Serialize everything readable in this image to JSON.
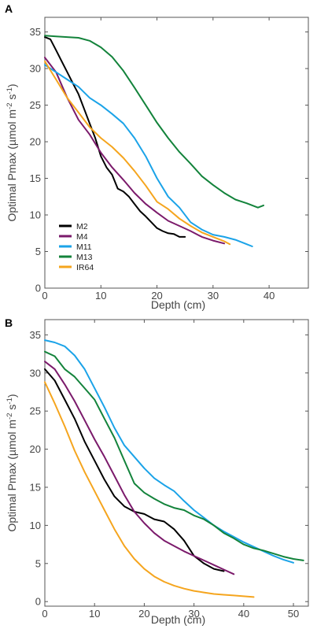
{
  "chart_data": [
    {
      "panel_label": "A",
      "type": "line",
      "xlabel": "Depth (cm)",
      "ylabel": "Optimal Pmax (µmol m⁻² s⁻¹)",
      "ylabel_parts": {
        "main": "Optimal Pmax (µmol m",
        "sup1": "-2",
        "mid": " s",
        "sup2": "-1",
        "end": ")"
      },
      "xlim": [
        0,
        47
      ],
      "ylim": [
        0,
        37
      ],
      "xticks": [
        "0",
        "10",
        "20",
        "30",
        "40"
      ],
      "yticks": [
        "0",
        "5",
        "10",
        "15",
        "20",
        "25",
        "30",
        "35"
      ],
      "xtick_values": [
        0,
        10,
        20,
        30,
        40
      ],
      "ytick_values": [
        0,
        5,
        10,
        15,
        20,
        25,
        30,
        35
      ],
      "legend_position": "lower-left",
      "series": [
        {
          "name": "M2",
          "color": "#000000",
          "x": [
            0,
            1,
            2,
            3,
            4,
            5,
            6,
            7,
            8,
            9,
            10,
            11,
            12,
            13,
            14,
            15,
            16,
            17,
            18,
            19,
            20,
            21,
            22,
            23,
            24,
            25
          ],
          "y": [
            34.3,
            34.0,
            32.5,
            31.0,
            29.5,
            28.0,
            26.5,
            24.5,
            22.5,
            20.5,
            18.0,
            16.5,
            15.5,
            13.6,
            13.2,
            12.5,
            11.5,
            10.5,
            9.8,
            9.0,
            8.2,
            7.8,
            7.5,
            7.4,
            7.0,
            7.0
          ]
        },
        {
          "name": "M4",
          "color": "#7b1a6b",
          "x": [
            0,
            2,
            4,
            6,
            8,
            10,
            12,
            14,
            16,
            18,
            20,
            22,
            24,
            26,
            28,
            30,
            32
          ],
          "y": [
            31.5,
            29.5,
            26.0,
            23.0,
            21.0,
            18.5,
            16.5,
            14.8,
            13.0,
            11.5,
            10.3,
            9.2,
            8.5,
            7.8,
            7.0,
            6.5,
            6.1
          ]
        },
        {
          "name": "M11",
          "color": "#1ba3e8",
          "x": [
            0,
            2,
            4,
            6,
            8,
            10,
            12,
            14,
            16,
            18,
            20,
            22,
            24,
            26,
            28,
            30,
            32,
            34,
            36,
            37
          ],
          "y": [
            30.5,
            29.5,
            28.5,
            27.5,
            26.0,
            25.0,
            23.8,
            22.5,
            20.5,
            18.0,
            15.0,
            12.5,
            11.0,
            9.0,
            8.0,
            7.3,
            7.0,
            6.6,
            6.0,
            5.7
          ]
        },
        {
          "name": "M13",
          "color": "#13833b",
          "x": [
            0,
            2,
            4,
            6,
            8,
            10,
            12,
            14,
            16,
            18,
            20,
            22,
            24,
            26,
            28,
            30,
            32,
            34,
            36,
            38,
            39
          ],
          "y": [
            34.5,
            34.4,
            34.3,
            34.2,
            33.8,
            32.9,
            31.6,
            29.7,
            27.4,
            25.0,
            22.6,
            20.5,
            18.6,
            17.0,
            15.3,
            14.1,
            13.0,
            12.1,
            11.6,
            11.0,
            11.3
          ]
        },
        {
          "name": "IR64",
          "color": "#f5a51e",
          "x": [
            0,
            2,
            4,
            6,
            8,
            10,
            12,
            14,
            16,
            18,
            20,
            22,
            24,
            26,
            28,
            30,
            32,
            33
          ],
          "y": [
            31.0,
            28.5,
            26.0,
            24.0,
            22.0,
            20.5,
            19.3,
            17.8,
            16.0,
            14.0,
            11.8,
            10.8,
            9.5,
            8.5,
            7.6,
            7.0,
            6.4,
            6.0
          ]
        }
      ]
    },
    {
      "panel_label": "B",
      "type": "line",
      "xlabel": "Depth (cm)",
      "ylabel": "Optimal Pmax (µmol m⁻² s⁻¹)",
      "ylabel_parts": {
        "main": "Optimal Pmax (µmol m",
        "sup1": "-2",
        "mid": " s",
        "sup2": "-1",
        "end": ")"
      },
      "xlim": [
        0,
        53
      ],
      "ylim": [
        -0.6,
        37
      ],
      "xticks": [
        "0",
        "10",
        "20",
        "30",
        "40",
        "50"
      ],
      "yticks": [
        "0",
        "5",
        "10",
        "15",
        "20",
        "25",
        "30",
        "35"
      ],
      "xtick_values": [
        0,
        10,
        20,
        30,
        40,
        50
      ],
      "ytick_values": [
        0,
        5,
        10,
        15,
        20,
        25,
        30,
        35
      ],
      "legend_position": "none",
      "series": [
        {
          "name": "M2",
          "color": "#000000",
          "x": [
            0,
            2,
            4,
            6,
            8,
            10,
            12,
            14,
            16,
            18,
            20,
            22,
            24,
            26,
            28,
            30,
            32,
            34,
            36
          ],
          "y": [
            30.5,
            29.0,
            26.5,
            24.0,
            21.0,
            18.5,
            16.0,
            13.8,
            12.5,
            11.8,
            11.5,
            10.8,
            10.5,
            9.5,
            8.0,
            6.0,
            5.0,
            4.3,
            4.0
          ]
        },
        {
          "name": "M4",
          "color": "#7b1a6b",
          "x": [
            0,
            2,
            4,
            6,
            8,
            10,
            12,
            14,
            16,
            18,
            20,
            22,
            24,
            26,
            28,
            30,
            32,
            34,
            36,
            38
          ],
          "y": [
            31.5,
            30.5,
            28.5,
            26.3,
            23.8,
            21.3,
            19.0,
            16.5,
            14.0,
            11.8,
            10.3,
            9.0,
            8.0,
            7.3,
            6.6,
            6.0,
            5.4,
            4.8,
            4.2,
            3.6
          ]
        },
        {
          "name": "M11",
          "color": "#1ba3e8",
          "x": [
            0,
            2,
            4,
            6,
            8,
            10,
            12,
            14,
            16,
            18,
            20,
            22,
            24,
            26,
            28,
            30,
            32,
            34,
            36,
            38,
            40,
            42,
            44,
            46,
            48,
            50
          ],
          "y": [
            34.3,
            34.0,
            33.5,
            32.3,
            30.5,
            28.0,
            25.5,
            22.8,
            20.5,
            19.0,
            17.5,
            16.2,
            15.3,
            14.5,
            13.2,
            12.0,
            11.0,
            10.0,
            9.2,
            8.5,
            7.8,
            7.2,
            6.6,
            6.0,
            5.5,
            5.1
          ]
        },
        {
          "name": "M13",
          "color": "#13833b",
          "x": [
            0,
            2,
            4,
            6,
            8,
            10,
            12,
            14,
            16,
            18,
            20,
            22,
            24,
            26,
            28,
            30,
            32,
            34,
            36,
            38,
            40,
            42,
            44,
            46,
            48,
            50,
            52
          ],
          "y": [
            32.8,
            32.2,
            30.5,
            29.5,
            28.0,
            26.5,
            24.0,
            21.5,
            18.5,
            15.5,
            14.3,
            13.5,
            12.8,
            12.3,
            12.0,
            11.3,
            10.8,
            10.0,
            9.0,
            8.3,
            7.5,
            7.0,
            6.7,
            6.3,
            5.9,
            5.6,
            5.4
          ]
        },
        {
          "name": "IR64",
          "color": "#f5a51e",
          "x": [
            0,
            2,
            4,
            6,
            8,
            10,
            12,
            14,
            16,
            18,
            20,
            22,
            24,
            26,
            28,
            30,
            32,
            34,
            36,
            38,
            40,
            42
          ],
          "y": [
            28.8,
            26.0,
            23.0,
            19.8,
            17.0,
            14.5,
            12.0,
            9.5,
            7.3,
            5.6,
            4.3,
            3.3,
            2.6,
            2.1,
            1.7,
            1.4,
            1.2,
            1.0,
            0.9,
            0.8,
            0.7,
            0.6
          ]
        }
      ]
    }
  ]
}
